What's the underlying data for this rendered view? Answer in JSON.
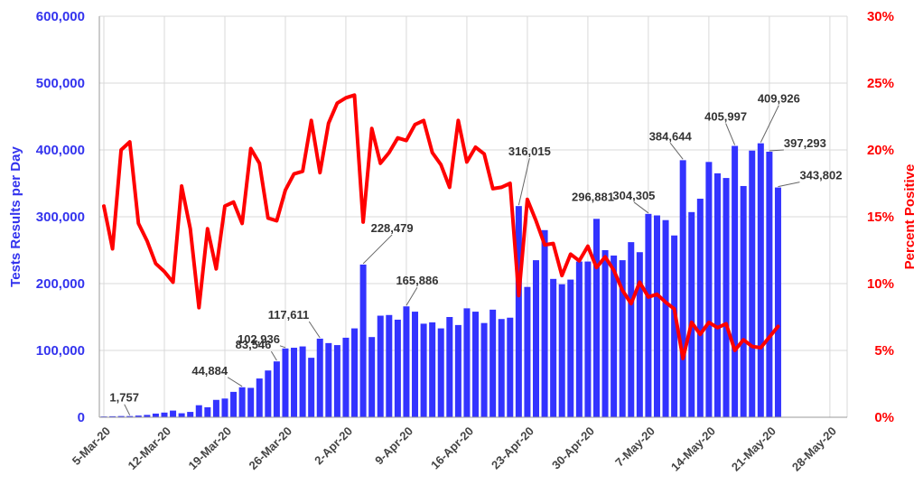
{
  "chart_data": {
    "type": "bar",
    "x_labels": [
      "5-Mar-20",
      "12-Mar-20",
      "19-Mar-20",
      "26-Mar-20",
      "2-Apr-20",
      "9-Apr-20",
      "16-Apr-20",
      "23-Apr-20",
      "30-Apr-20",
      "7-May-20",
      "14-May-20",
      "21-May-20",
      "28-May-20"
    ],
    "x_start": "5-Mar-20",
    "ylabel_left": "Tests Results per Day",
    "ylabel_right": "Percent Positive",
    "y_left_ticks": [
      "0",
      "100,000",
      "200,000",
      "300,000",
      "400,000",
      "500,000",
      "600,000"
    ],
    "y_right_ticks": [
      "0%",
      "5%",
      "10%",
      "15%",
      "20%",
      "25%",
      "30%"
    ],
    "ylim_left": [
      0,
      600000
    ],
    "ylim_right": [
      0,
      30
    ],
    "grid": true,
    "colors": {
      "bars": "#3333ff",
      "line": "#ff0000",
      "left_axis": "#3333ee",
      "right_axis": "#ff0000"
    },
    "series": [
      {
        "name": "Tests Results per Day",
        "kind": "bar",
        "values": [
          1200,
          1500,
          1800,
          1757,
          2500,
          3500,
          5500,
          7000,
          10000,
          6000,
          8000,
          18000,
          15000,
          26000,
          28000,
          38000,
          44884,
          44000,
          58000,
          70000,
          83546,
          102936,
          104000,
          106000,
          89000,
          117611,
          111000,
          108000,
          119000,
          133000,
          228479,
          120000,
          152000,
          153000,
          146000,
          165886,
          158000,
          140000,
          142000,
          133000,
          150000,
          138000,
          163000,
          158000,
          141000,
          161000,
          147000,
          149000,
          316015,
          195000,
          235000,
          280000,
          207000,
          199000,
          206000,
          233000,
          233000,
          296881,
          250000,
          242000,
          235000,
          262000,
          247000,
          304305,
          302000,
          295000,
          272000,
          384644,
          307000,
          327000,
          382000,
          365000,
          358000,
          405997,
          346000,
          399000,
          409926,
          397293,
          343802
        ]
      },
      {
        "name": "Percent Positive",
        "kind": "line",
        "values": [
          15.8,
          12.6,
          20.0,
          20.6,
          14.5,
          13.2,
          11.5,
          10.9,
          10.1,
          17.3,
          14.1,
          8.2,
          14.1,
          11.1,
          15.8,
          16.1,
          14.5,
          20.1,
          19.0,
          14.9,
          14.7,
          17.0,
          18.2,
          18.4,
          22.2,
          18.3,
          22.0,
          23.5,
          23.9,
          24.1,
          14.6,
          21.6,
          19.0,
          19.8,
          20.9,
          20.7,
          21.9,
          22.2,
          19.8,
          18.9,
          17.2,
          22.2,
          19.1,
          20.2,
          19.7,
          17.1,
          17.2,
          17.5,
          9.1,
          16.3,
          14.7,
          12.9,
          13.0,
          10.6,
          12.2,
          11.7,
          12.8,
          11.2,
          12.0,
          11.0,
          9.5,
          8.5,
          10.1,
          9.0,
          9.2,
          8.6,
          8.1,
          4.4,
          7.1,
          6.2,
          7.1,
          6.7,
          7.0,
          5.0,
          5.8,
          5.3,
          5.2,
          6.0,
          6.8
        ]
      }
    ],
    "annotations": [
      {
        "label": "1,757",
        "index": 3
      },
      {
        "label": "44,884",
        "index": 16
      },
      {
        "label": "83,546",
        "index": 20
      },
      {
        "label": "102,936",
        "index": 21
      },
      {
        "label": "117,611",
        "index": 25
      },
      {
        "label": "228,479",
        "index": 30
      },
      {
        "label": "165,886",
        "index": 35
      },
      {
        "label": "316,015",
        "index": 48
      },
      {
        "label": "296,881",
        "index": 57
      },
      {
        "label": "304,305",
        "index": 63
      },
      {
        "label": "384,644",
        "index": 67
      },
      {
        "label": "405,997",
        "index": 73
      },
      {
        "label": "409,926",
        "index": 76
      },
      {
        "label": "397,293",
        "index": 77
      },
      {
        "label": "343,802",
        "index": 78
      }
    ]
  }
}
